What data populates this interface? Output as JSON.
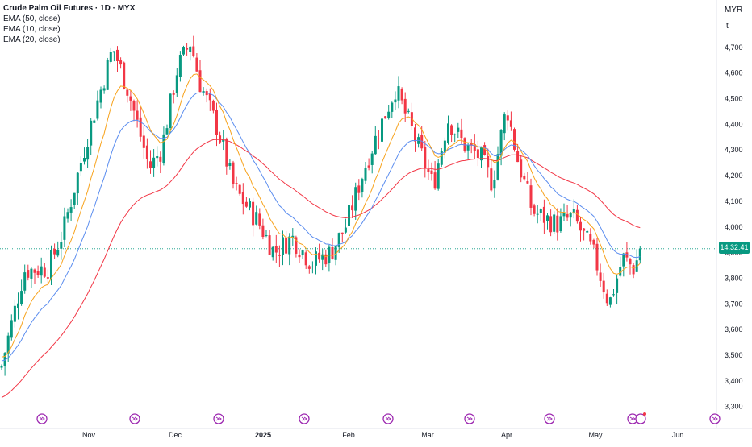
{
  "chart_data": {
    "type": "candlestick",
    "title": "Crude Palm Oil Futures · 1D · MYX",
    "currency": "MYR",
    "unit_label": "t",
    "indicators": [
      "EMA (50, close)",
      "EMA (10, close)",
      "EMA (20, close)"
    ],
    "ylim": [
      3250,
      4850
    ],
    "y_ticks": [
      "3,300",
      "3,400",
      "3,500",
      "3,600",
      "3,700",
      "3,800",
      "3,900",
      "4,000",
      "4,100",
      "4,200",
      "4,300",
      "4,400",
      "4,500",
      "4,600",
      "4,700"
    ],
    "x_ticks": [
      "Nov",
      "Dec",
      "2025",
      "Feb",
      "Mar",
      "Apr",
      "May",
      "Jun"
    ],
    "last_price": 3915,
    "countdown": "14:32:41",
    "candles_summary": {
      "start": "Oct",
      "swing_points": [
        {
          "date": "early Oct",
          "value": 3460
        },
        {
          "date": "mid Nov",
          "value": 4700
        },
        {
          "date": "late Nov",
          "value": 4230
        },
        {
          "date": "early Dec",
          "value": 4720
        },
        {
          "date": "mid Jan",
          "value": 3860
        },
        {
          "date": "mid Feb",
          "value": 4540
        },
        {
          "date": "early Mar",
          "value": 4160
        },
        {
          "date": "late Mar",
          "value": 4470
        },
        {
          "date": "mid Apr",
          "value": 3930
        },
        {
          "date": "early May",
          "value": 3690
        },
        {
          "date": "mid May",
          "value": 3915
        }
      ]
    },
    "colors": {
      "up": "#089981",
      "down": "#f23645",
      "ema50": "#f23645",
      "ema10": "#f7a21b",
      "ema20": "#5b8def",
      "event": "#9c27b0"
    }
  }
}
